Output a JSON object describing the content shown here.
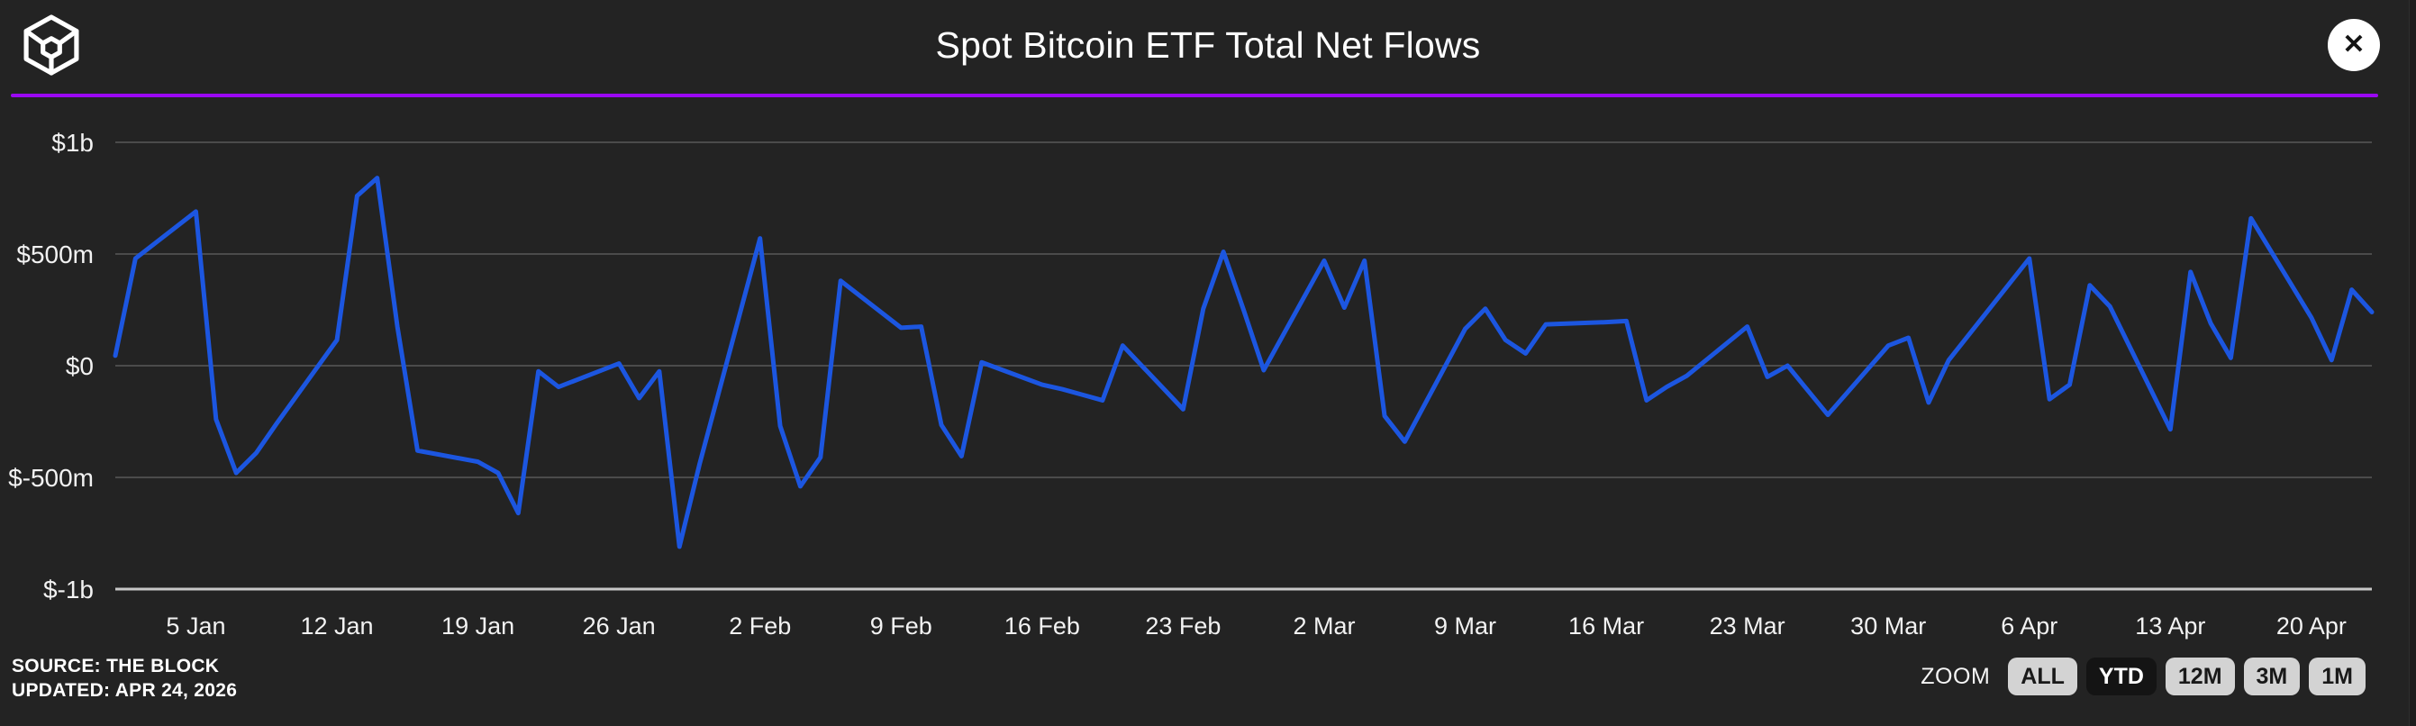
{
  "header": {
    "title": "Spot Bitcoin ETF Total Net Flows",
    "close_label": "✕"
  },
  "source": {
    "line1": "SOURCE: THE BLOCK",
    "line2": "UPDATED: APR 24, 2026"
  },
  "zoom_controls": {
    "label": "ZOOM",
    "buttons": [
      {
        "label": "ALL",
        "active": false
      },
      {
        "label": "YTD",
        "active": true
      },
      {
        "label": "12M",
        "active": false
      },
      {
        "label": "3M",
        "active": false
      },
      {
        "label": "1M",
        "active": false
      }
    ]
  },
  "colors": {
    "background": "#232323",
    "line": "#1c56e0",
    "grid": "#4b4b4b",
    "axis": "#c8c8c8",
    "accent_rule": "#9a08f2",
    "label": "#f2f2f2",
    "button_bg": "#d3d3d3",
    "button_active_bg": "#141414"
  },
  "chart_data": {
    "type": "line",
    "title": "Spot Bitcoin ETF Total Net Flows",
    "unit": "USD millions (net flow per day)",
    "grid": "horizontal",
    "legend": "none",
    "ylim": [
      -1100,
      1100
    ],
    "line_color": "#1c56e0",
    "y_ticks": [
      {
        "label": "$1b",
        "value": 1000,
        "emphasis": false
      },
      {
        "label": "$500m",
        "value": 500,
        "emphasis": false
      },
      {
        "label": "$0",
        "value": 0,
        "emphasis": false
      },
      {
        "label": "$-500m",
        "value": -500,
        "emphasis": false
      },
      {
        "label": "$-1b",
        "value": -1000,
        "emphasis": true
      }
    ],
    "x_ticks": [
      {
        "label": "5 Jan",
        "day": 4
      },
      {
        "label": "12 Jan",
        "day": 11
      },
      {
        "label": "19 Jan",
        "day": 18
      },
      {
        "label": "26 Jan",
        "day": 25
      },
      {
        "label": "2 Feb",
        "day": 32
      },
      {
        "label": "9 Feb",
        "day": 39
      },
      {
        "label": "16 Feb",
        "day": 46
      },
      {
        "label": "23 Feb",
        "day": 53
      },
      {
        "label": "2 Mar",
        "day": 60
      },
      {
        "label": "9 Mar",
        "day": 67
      },
      {
        "label": "16 Mar",
        "day": 74
      },
      {
        "label": "23 Mar",
        "day": 81
      },
      {
        "label": "30 Mar",
        "day": 88
      },
      {
        "label": "6 Apr",
        "day": 95
      },
      {
        "label": "13 Apr",
        "day": 102
      },
      {
        "label": "20 Apr",
        "day": 109
      }
    ],
    "series": [
      {
        "name": "Total Net Flows",
        "points": [
          {
            "date": "1 Jan",
            "day": 0,
            "value": 45
          },
          {
            "date": "2 Jan",
            "day": 1,
            "value": 480
          },
          {
            "date": "5 Jan",
            "day": 4,
            "value": 690
          },
          {
            "date": "6 Jan",
            "day": 5,
            "value": -240
          },
          {
            "date": "7 Jan",
            "day": 6,
            "value": -480
          },
          {
            "date": "8 Jan",
            "day": 7,
            "value": -390
          },
          {
            "date": "9 Jan",
            "day": 8,
            "value": -260
          },
          {
            "date": "12 Jan",
            "day": 11,
            "value": 115
          },
          {
            "date": "13 Jan",
            "day": 12,
            "value": 760
          },
          {
            "date": "14 Jan",
            "day": 13,
            "value": 840
          },
          {
            "date": "15 Jan",
            "day": 14,
            "value": 175
          },
          {
            "date": "16 Jan",
            "day": 15,
            "value": -380
          },
          {
            "date": "19 Jan",
            "day": 18,
            "value": -430
          },
          {
            "date": "20 Jan",
            "day": 19,
            "value": -480
          },
          {
            "date": "21 Jan",
            "day": 20,
            "value": -660
          },
          {
            "date": "22 Jan",
            "day": 21,
            "value": -25
          },
          {
            "date": "23 Jan",
            "day": 22,
            "value": -95
          },
          {
            "date": "26 Jan",
            "day": 25,
            "value": 10
          },
          {
            "date": "27 Jan",
            "day": 26,
            "value": -145
          },
          {
            "date": "28 Jan",
            "day": 27,
            "value": -25
          },
          {
            "date": "29 Jan",
            "day": 28,
            "value": -810
          },
          {
            "date": "30 Jan",
            "day": 29,
            "value": -440
          },
          {
            "date": "2 Feb",
            "day": 32,
            "value": 570
          },
          {
            "date": "3 Feb",
            "day": 33,
            "value": -270
          },
          {
            "date": "4 Feb",
            "day": 34,
            "value": -540
          },
          {
            "date": "5 Feb",
            "day": 35,
            "value": -410
          },
          {
            "date": "6 Feb",
            "day": 36,
            "value": 380
          },
          {
            "date": "9 Feb",
            "day": 39,
            "value": 170
          },
          {
            "date": "10 Feb",
            "day": 40,
            "value": 175
          },
          {
            "date": "11 Feb",
            "day": 41,
            "value": -265
          },
          {
            "date": "12 Feb",
            "day": 42,
            "value": -405
          },
          {
            "date": "13 Feb",
            "day": 43,
            "value": 15
          },
          {
            "date": "16 Feb",
            "day": 46,
            "value": -85
          },
          {
            "date": "17 Feb",
            "day": 47,
            "value": -105
          },
          {
            "date": "18 Feb",
            "day": 48,
            "value": -130
          },
          {
            "date": "19 Feb",
            "day": 49,
            "value": -155
          },
          {
            "date": "20 Feb",
            "day": 50,
            "value": 90
          },
          {
            "date": "23 Feb",
            "day": 53,
            "value": -195
          },
          {
            "date": "24 Feb",
            "day": 54,
            "value": 255
          },
          {
            "date": "25 Feb",
            "day": 55,
            "value": 510
          },
          {
            "date": "26 Feb",
            "day": 56,
            "value": 250
          },
          {
            "date": "27 Feb",
            "day": 57,
            "value": -20
          },
          {
            "date": "2 Mar",
            "day": 60,
            "value": 470
          },
          {
            "date": "3 Mar",
            "day": 61,
            "value": 260
          },
          {
            "date": "4 Mar",
            "day": 62,
            "value": 470
          },
          {
            "date": "5 Mar",
            "day": 63,
            "value": -225
          },
          {
            "date": "6 Mar",
            "day": 64,
            "value": -340
          },
          {
            "date": "9 Mar",
            "day": 67,
            "value": 165
          },
          {
            "date": "10 Mar",
            "day": 68,
            "value": 255
          },
          {
            "date": "11 Mar",
            "day": 69,
            "value": 115
          },
          {
            "date": "12 Mar",
            "day": 70,
            "value": 55
          },
          {
            "date": "13 Mar",
            "day": 71,
            "value": 185
          },
          {
            "date": "16 Mar",
            "day": 74,
            "value": 195
          },
          {
            "date": "17 Mar",
            "day": 75,
            "value": 200
          },
          {
            "date": "18 Mar",
            "day": 76,
            "value": -155
          },
          {
            "date": "19 Mar",
            "day": 77,
            "value": -95
          },
          {
            "date": "20 Mar",
            "day": 78,
            "value": -45
          },
          {
            "date": "23 Mar",
            "day": 81,
            "value": 175
          },
          {
            "date": "24 Mar",
            "day": 82,
            "value": -50
          },
          {
            "date": "25 Mar",
            "day": 83,
            "value": 0
          },
          {
            "date": "26 Mar",
            "day": 84,
            "value": -110
          },
          {
            "date": "27 Mar",
            "day": 85,
            "value": -220
          },
          {
            "date": "30 Mar",
            "day": 88,
            "value": 90
          },
          {
            "date": "31 Mar",
            "day": 89,
            "value": 125
          },
          {
            "date": "1 Apr",
            "day": 90,
            "value": -165
          },
          {
            "date": "2 Apr",
            "day": 91,
            "value": 25
          },
          {
            "date": "6 Apr",
            "day": 95,
            "value": 480
          },
          {
            "date": "7 Apr",
            "day": 96,
            "value": -150
          },
          {
            "date": "8 Apr",
            "day": 97,
            "value": -85
          },
          {
            "date": "9 Apr",
            "day": 98,
            "value": 360
          },
          {
            "date": "10 Apr",
            "day": 99,
            "value": 265
          },
          {
            "date": "13 Apr",
            "day": 102,
            "value": -285
          },
          {
            "date": "14 Apr",
            "day": 103,
            "value": 420
          },
          {
            "date": "15 Apr",
            "day": 104,
            "value": 190
          },
          {
            "date": "16 Apr",
            "day": 105,
            "value": 35
          },
          {
            "date": "17 Apr",
            "day": 106,
            "value": 660
          },
          {
            "date": "20 Apr",
            "day": 109,
            "value": 215
          },
          {
            "date": "21 Apr",
            "day": 110,
            "value": 25
          },
          {
            "date": "22 Apr",
            "day": 111,
            "value": 340
          },
          {
            "date": "23 Apr",
            "day": 112,
            "value": 240
          }
        ]
      }
    ]
  }
}
